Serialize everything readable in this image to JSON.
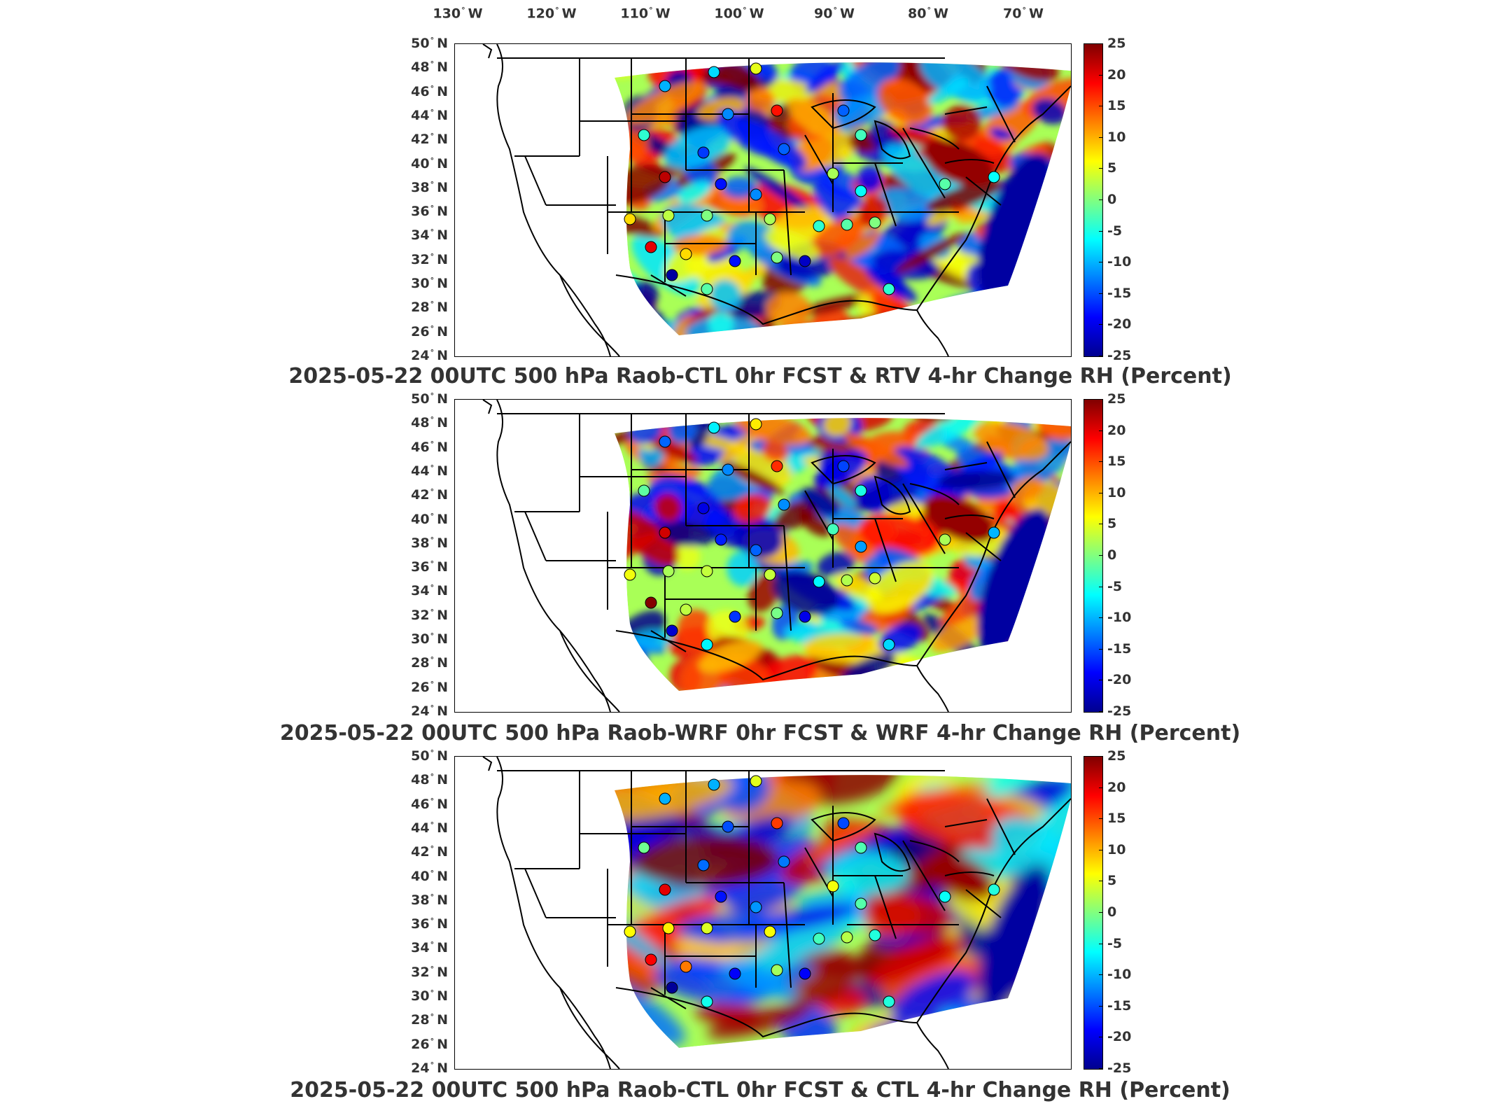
{
  "map": {
    "lon_labels": [
      "130",
      "120",
      "110",
      "100",
      "90",
      "80",
      "70"
    ],
    "lon_suffix": "W",
    "lat_labels": [
      "50",
      "48",
      "46",
      "44",
      "42",
      "40",
      "38",
      "36",
      "34",
      "32",
      "30",
      "28",
      "26",
      "24"
    ],
    "lat_suffix": "N",
    "degree_symbol": "°"
  },
  "colorbar": {
    "ticks": [
      "25",
      "20",
      "15",
      "10",
      "5",
      "0",
      "-5",
      "-10",
      "-15",
      "-20",
      "-25"
    ],
    "range": [
      -25,
      25
    ],
    "colors": [
      "#00008f",
      "#0000ff",
      "#0080ff",
      "#00ffff",
      "#80ff80",
      "#ffff00",
      "#ff8000",
      "#ff0000",
      "#800000"
    ]
  },
  "panels": [
    {
      "title": "2025-05-22 00UTC 500 hPa Raob-CTL 0hr FCST & RTV 4-hr Change RH (Percent)"
    },
    {
      "title": "2025-05-22 00UTC 500 hPa Raob-WRF 0hr FCST & WRF 4-hr Change RH (Percent)"
    },
    {
      "title": "2025-05-22 00UTC 500 hPa Raob-CTL 0hr FCST & CTL 4-hr Change RH (Percent)"
    }
  ]
}
